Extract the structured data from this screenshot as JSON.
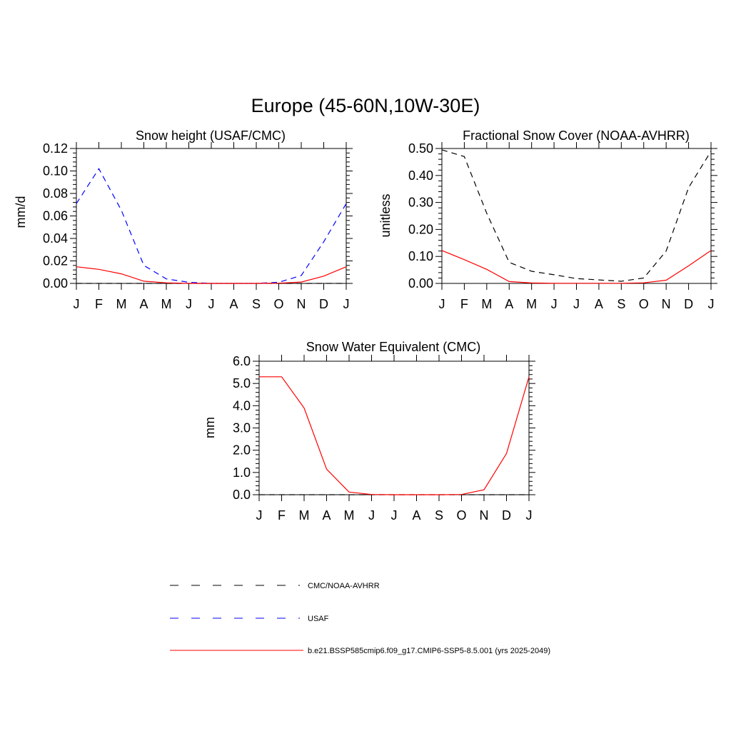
{
  "figure_title": "Europe (45-60N,10W-30E)",
  "chart_data": [
    {
      "type": "line",
      "title": "Snow height (USAF/CMC)",
      "ylabel": "mm/d",
      "xlabel": "",
      "categories": [
        "J",
        "F",
        "M",
        "A",
        "M",
        "J",
        "J",
        "A",
        "S",
        "O",
        "N",
        "D",
        "J"
      ],
      "ylim": [
        0,
        0.12
      ],
      "yticks": [
        "0.00",
        "0.02",
        "0.04",
        "0.06",
        "0.08",
        "0.10",
        "0.12"
      ],
      "series": [
        {
          "name": "CMC/NOAA-AVHRR",
          "color": "#000000",
          "dash": "dashed",
          "values": [
            0,
            0,
            0,
            0,
            0,
            0,
            0,
            0,
            0,
            0,
            0,
            0,
            0
          ]
        },
        {
          "name": "USAF",
          "color": "#0000ff",
          "dash": "dashed",
          "values": [
            0.071,
            0.102,
            0.065,
            0.016,
            0.004,
            0.001,
            0,
            0,
            0,
            0.001,
            0.007,
            0.037,
            0.071
          ]
        },
        {
          "name": "b.e21.BSSP585cmip6.f09_g17.CMIP6-SSP5-8.5.001 (yrs 2025-2049)",
          "color": "#ff0000",
          "dash": "solid",
          "values": [
            0.0148,
            0.0125,
            0.0085,
            0.002,
            0.0005,
            0,
            0,
            0,
            0,
            0.0002,
            0.0012,
            0.0065,
            0.0148
          ]
        }
      ]
    },
    {
      "type": "line",
      "title": "Fractional Snow Cover (NOAA-AVHRR)",
      "ylabel": "unitless",
      "xlabel": "",
      "categories": [
        "J",
        "F",
        "M",
        "A",
        "M",
        "J",
        "J",
        "A",
        "S",
        "O",
        "N",
        "D",
        "J"
      ],
      "ylim": [
        0,
        0.5
      ],
      "yticks": [
        "0.00",
        "0.10",
        "0.20",
        "0.30",
        "0.40",
        "0.50"
      ],
      "series": [
        {
          "name": "CMC/NOAA-AVHRR",
          "color": "#000000",
          "dash": "dashed",
          "values": [
            0.495,
            0.47,
            0.26,
            0.078,
            0.045,
            0.032,
            0.018,
            0.013,
            0.008,
            0.02,
            0.12,
            0.355,
            0.49
          ]
        },
        {
          "name": "b.e21.BSSP585cmip6.f09_g17.CMIP6-SSP5-8.5.001 (yrs 2025-2049)",
          "color": "#ff0000",
          "dash": "solid",
          "values": [
            0.122,
            0.088,
            0.052,
            0.007,
            0.0015,
            0.0005,
            0.0005,
            0.0005,
            0.0005,
            0.002,
            0.012,
            0.065,
            0.122
          ]
        }
      ]
    },
    {
      "type": "line",
      "title": "Snow Water Equivalent (CMC)",
      "ylabel": "mm",
      "xlabel": "",
      "categories": [
        "J",
        "F",
        "M",
        "A",
        "M",
        "J",
        "J",
        "A",
        "S",
        "O",
        "N",
        "D",
        "J"
      ],
      "ylim": [
        0,
        6.0
      ],
      "yticks": [
        "0.0",
        "1.0",
        "2.0",
        "3.0",
        "4.0",
        "5.0",
        "6.0"
      ],
      "series": [
        {
          "name": "CMC/NOAA-AVHRR",
          "color": "#000000",
          "dash": "dashed",
          "values": [
            0,
            0,
            0,
            0,
            0,
            0,
            0,
            0,
            0,
            0,
            0,
            0,
            0
          ]
        },
        {
          "name": "b.e21.BSSP585cmip6.f09_g17.CMIP6-SSP5-8.5.001 (yrs 2025-2049)",
          "color": "#ff0000",
          "dash": "solid",
          "values": [
            5.3,
            5.3,
            3.9,
            1.15,
            0.12,
            0.01,
            0,
            0,
            0,
            0.01,
            0.22,
            1.85,
            5.3
          ]
        }
      ]
    }
  ],
  "legend": [
    {
      "label": "CMC/NOAA-AVHRR",
      "color": "#000000",
      "dash": "dashed"
    },
    {
      "label": "USAF",
      "color": "#0000ff",
      "dash": "dashed"
    },
    {
      "label": "b.e21.BSSP585cmip6.f09_g17.CMIP6-SSP5-8.5.001 (yrs 2025-2049)",
      "color": "#ff0000",
      "dash": "solid"
    }
  ]
}
